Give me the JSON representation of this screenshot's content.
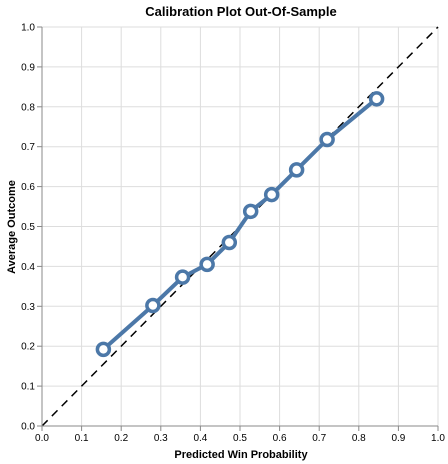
{
  "chart_data": {
    "type": "line",
    "title": "Calibration Plot Out-Of-Sample",
    "xlabel": "Predicted Win Probability",
    "ylabel": "Average Outcome",
    "xlim": [
      0,
      1
    ],
    "ylim": [
      0,
      1
    ],
    "xticks": [
      "0.0",
      "0.1",
      "0.2",
      "0.3",
      "0.4",
      "0.5",
      "0.6",
      "0.7",
      "0.8",
      "0.9",
      "1.0"
    ],
    "yticks": [
      "0.0",
      "0.1",
      "0.2",
      "0.3",
      "0.4",
      "0.5",
      "0.6",
      "0.7",
      "0.8",
      "0.9",
      "1.0"
    ],
    "grid": true,
    "reference_line": {
      "from": [
        0,
        0
      ],
      "to": [
        1,
        1
      ],
      "style": "dashed",
      "color": "#000000"
    },
    "series": [
      {
        "color": "#4c78a8",
        "x": [
          0.155,
          0.28,
          0.355,
          0.417,
          0.473,
          0.527,
          0.58,
          0.643,
          0.72,
          0.845
        ],
        "y": [
          0.192,
          0.302,
          0.373,
          0.405,
          0.46,
          0.538,
          0.58,
          0.642,
          0.718,
          0.82
        ]
      }
    ]
  }
}
